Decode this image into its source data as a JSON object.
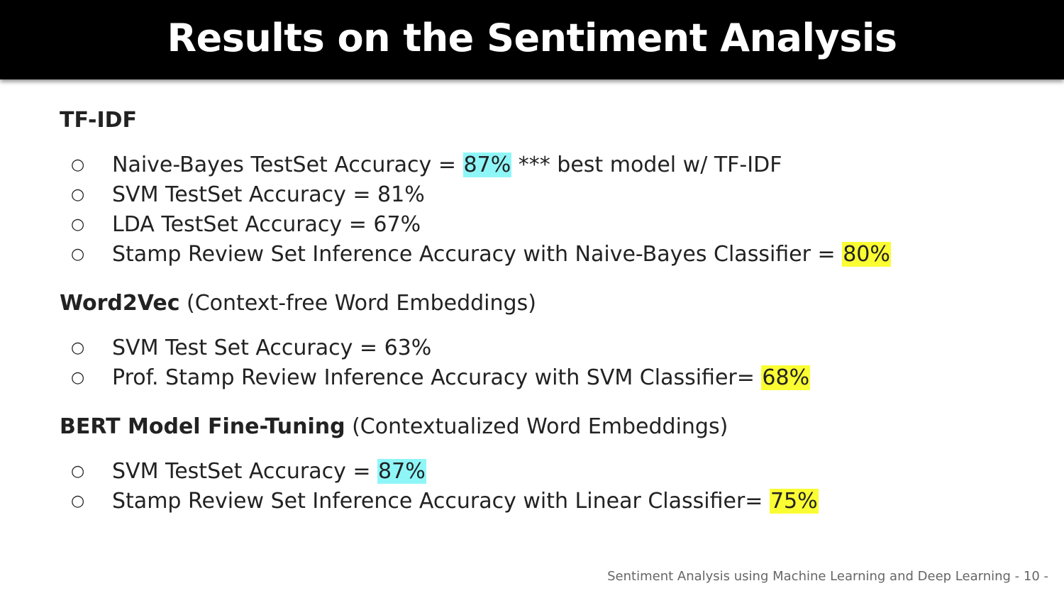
{
  "title": "Results on the Sentiment Analysis",
  "sections": [
    {
      "heading_bold": "TF-IDF",
      "heading_rest": "",
      "bullets": [
        {
          "pre": "Naive-Bayes TestSet Accuracy = ",
          "highlight": "87%",
          "highlight_color": "#8ff6f8",
          "post": " *** best model w/ TF-IDF"
        },
        {
          "pre": "SVM TestSet Accuracy = 81%",
          "highlight": "",
          "highlight_color": "",
          "post": ""
        },
        {
          "pre": "LDA TestSet Accuracy = 67%",
          "highlight": "",
          "highlight_color": "",
          "post": ""
        },
        {
          "pre": "Stamp Review Set Inference Accuracy with Naive-Bayes Classifier = ",
          "highlight": "80%",
          "highlight_color": "#fbfd33",
          "post": ""
        }
      ]
    },
    {
      "heading_bold": "Word2Vec",
      "heading_rest": " (Context-free Word Embeddings)",
      "bullets": [
        {
          "pre": "SVM Test Set Accuracy = 63%",
          "highlight": "",
          "highlight_color": "",
          "post": ""
        },
        {
          "pre": "Prof. Stamp Review Inference Accuracy with SVM Classifier= ",
          "highlight": "68%",
          "highlight_color": "#fbfd33",
          "post": ""
        }
      ]
    },
    {
      "heading_bold": "BERT Model Fine-Tuning",
      "heading_rest": " (Contextualized Word Embeddings)",
      "bullets": [
        {
          "pre": "SVM TestSet Accuracy = ",
          "highlight": "87%",
          "highlight_color": "#8ff6f8",
          "post": ""
        },
        {
          "pre": "Stamp Review Set Inference Accuracy with Linear Classifier= ",
          "highlight": "75%",
          "highlight_color": "#fbfd33",
          "post": ""
        }
      ]
    }
  ],
  "bullet_glyph": "○",
  "footer": "Sentiment Analysis using Machine Learning and Deep Learning  - 10 -"
}
